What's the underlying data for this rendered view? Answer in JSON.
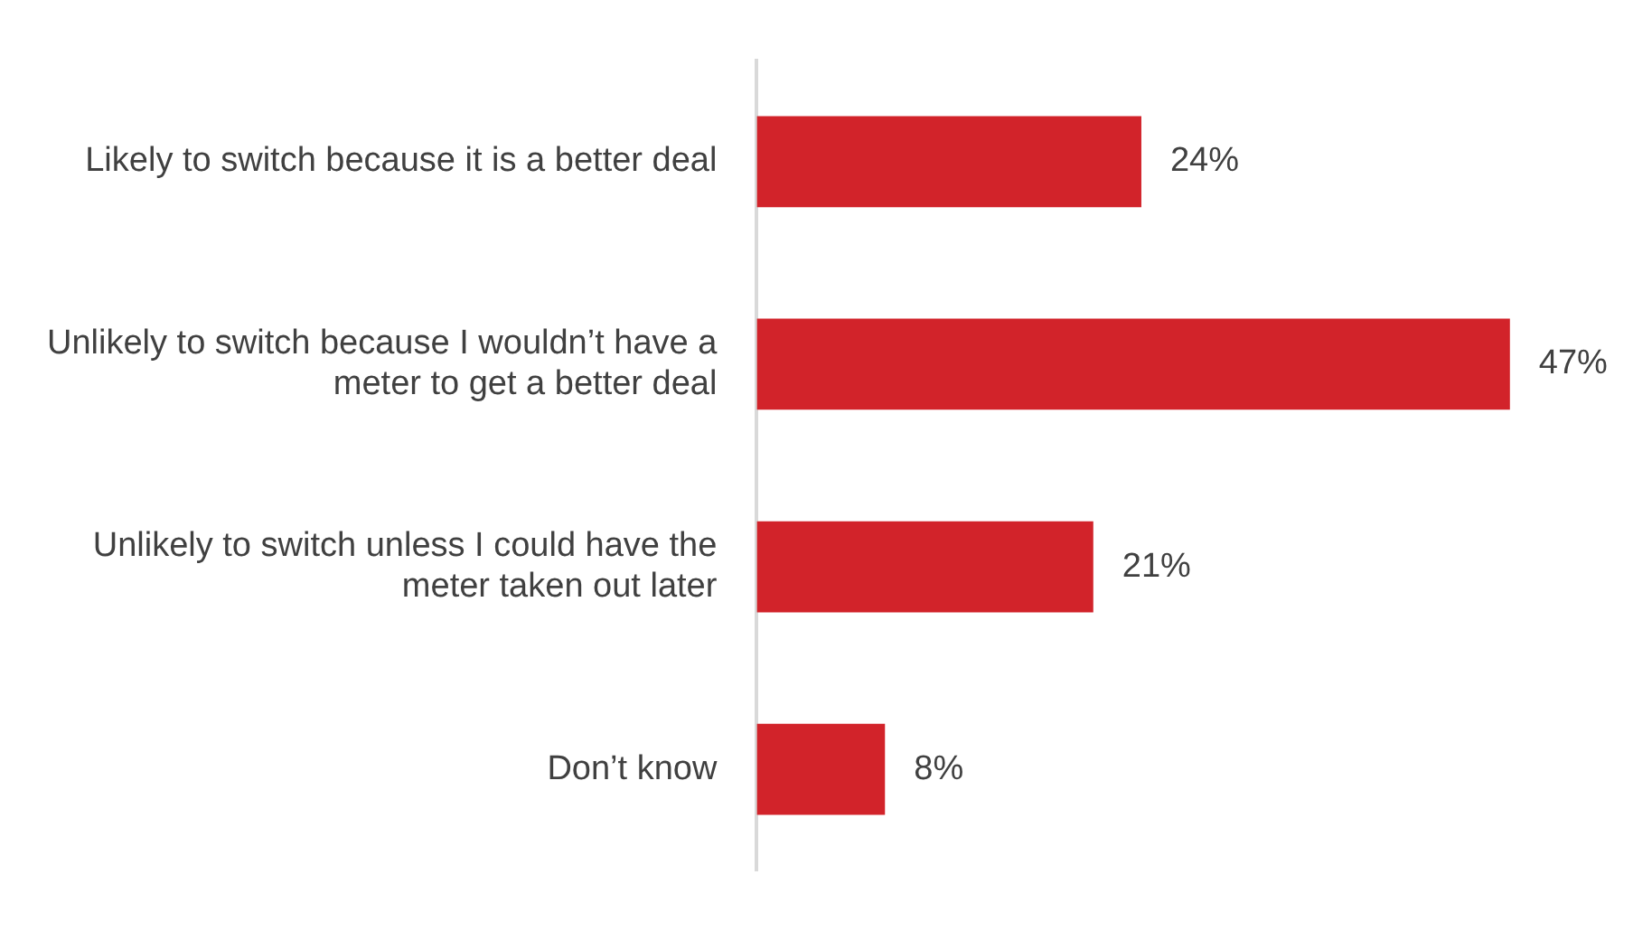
{
  "chart_data": {
    "type": "bar",
    "orientation": "horizontal",
    "categories": [
      "Likely to switch because it is a better deal",
      "Unlikely to switch because I wouldn’t have a meter to get a better deal",
      "Unlikely to switch unless I could have the meter taken out later",
      "Don’t know"
    ],
    "values": [
      24,
      47,
      21,
      8
    ],
    "value_labels": [
      "24%",
      "47%",
      "21%",
      "8%"
    ],
    "color": "#d2232a",
    "legend": false,
    "tick_labels": "y"
  }
}
